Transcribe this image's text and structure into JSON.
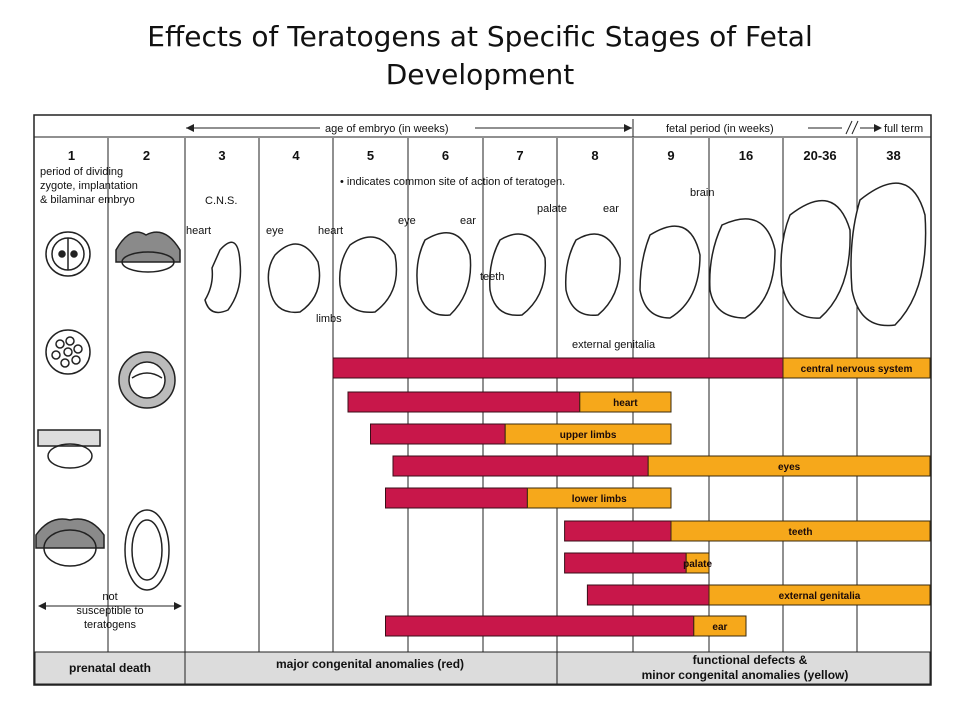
{
  "title": {
    "line1": "Effects of Teratogens at Specific Stages of Fetal",
    "line2": "Development"
  },
  "header": {
    "age_of_embryo": "age of embryo (in weeks)",
    "fetal_period": "fetal period (in weeks)",
    "full_term": "full term"
  },
  "weeks": [
    "1",
    "2",
    "3",
    "4",
    "5",
    "6",
    "7",
    "8",
    "9",
    "16",
    "20-36",
    "38"
  ],
  "period_note": [
    "period of dividing",
    "zygote, implantation",
    "& bilaminar embryo"
  ],
  "common_site_note": "• indicates common site of action of teratogen.",
  "anatomy_labels": {
    "cns": "C.N.S.",
    "heart1": "heart",
    "eye1": "eye",
    "heart2": "heart",
    "eye2": "eye",
    "ear1": "ear",
    "teeth": "teeth",
    "limbs": "limbs",
    "palate": "palate",
    "ear2": "ear",
    "brain": "brain",
    "external_genitalia": "external genitalia"
  },
  "not_susceptible": [
    "not",
    "susceptible to",
    "teratogens"
  ],
  "footer": {
    "prenatal_death": "prenatal death",
    "major": "major congenital anomalies (red)",
    "minor_line1": "functional defects &",
    "minor_line2": "minor congenital anomalies (yellow)"
  },
  "colors": {
    "red": "#c8174a",
    "yellow": "#f6a81b",
    "footer_bg": "#dcdcdc"
  },
  "chart_data": {
    "type": "gantt",
    "columns": [
      "3",
      "4",
      "5",
      "6",
      "7",
      "8",
      "9",
      "16",
      "20-36",
      "38"
    ],
    "series": [
      {
        "name": "central nervous system",
        "red": [
          2.0,
          8.0
        ],
        "yellow": [
          8.0,
          10.0
        ]
      },
      {
        "name": "heart",
        "red": [
          2.2,
          5.3
        ],
        "yellow": [
          5.3,
          6.5
        ]
      },
      {
        "name": "upper limbs",
        "red": [
          2.5,
          4.3
        ],
        "yellow": [
          4.3,
          6.5
        ]
      },
      {
        "name": "eyes",
        "red": [
          2.8,
          6.2
        ],
        "yellow": [
          6.2,
          10.0
        ]
      },
      {
        "name": "lower limbs",
        "red": [
          2.7,
          4.6
        ],
        "yellow": [
          4.6,
          6.5
        ]
      },
      {
        "name": "teeth",
        "red": [
          5.1,
          6.5
        ],
        "yellow": [
          6.5,
          10.0
        ]
      },
      {
        "name": "palate",
        "red": [
          5.1,
          6.7
        ],
        "yellow": [
          6.7,
          7.0
        ]
      },
      {
        "name": "external genitalia",
        "red": [
          5.4,
          7.0
        ],
        "yellow": [
          7.0,
          10.0
        ]
      },
      {
        "name": "ear",
        "red": [
          2.7,
          6.8
        ],
        "yellow": [
          6.8,
          7.5
        ]
      }
    ]
  }
}
